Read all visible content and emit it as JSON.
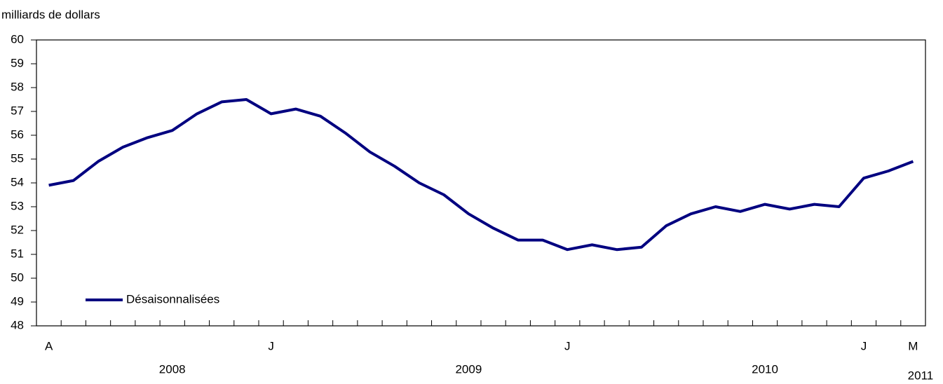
{
  "chart_data": {
    "type": "line",
    "y_axis_label": "milliards de dollars",
    "categories": [
      "A",
      null,
      null,
      null,
      null,
      null,
      null,
      null,
      null,
      "J",
      null,
      null,
      null,
      null,
      null,
      null,
      null,
      null,
      null,
      null,
      null,
      "J",
      null,
      null,
      null,
      null,
      null,
      null,
      null,
      null,
      null,
      null,
      null,
      "J",
      null,
      "M"
    ],
    "year_labels": [
      "2008",
      "2009",
      "2010",
      "2011"
    ],
    "series": [
      {
        "name": "Désaisonnalisées",
        "color": "#000080",
        "values": [
          53.9,
          54.1,
          54.9,
          55.5,
          55.9,
          56.2,
          56.9,
          57.4,
          57.5,
          56.9,
          57.1,
          56.8,
          56.1,
          55.3,
          54.7,
          54.0,
          53.5,
          52.7,
          52.1,
          51.6,
          51.6,
          51.2,
          51.4,
          51.2,
          51.3,
          52.2,
          52.7,
          53.0,
          52.8,
          53.1,
          52.9,
          53.1,
          53.0,
          54.2,
          54.5,
          54.9
        ]
      }
    ],
    "ylim": [
      48,
      60
    ],
    "yticks": [
      48,
      49,
      50,
      51,
      52,
      53,
      54,
      55,
      56,
      57,
      58,
      59,
      60
    ],
    "grid": false,
    "legend": "lower left"
  }
}
